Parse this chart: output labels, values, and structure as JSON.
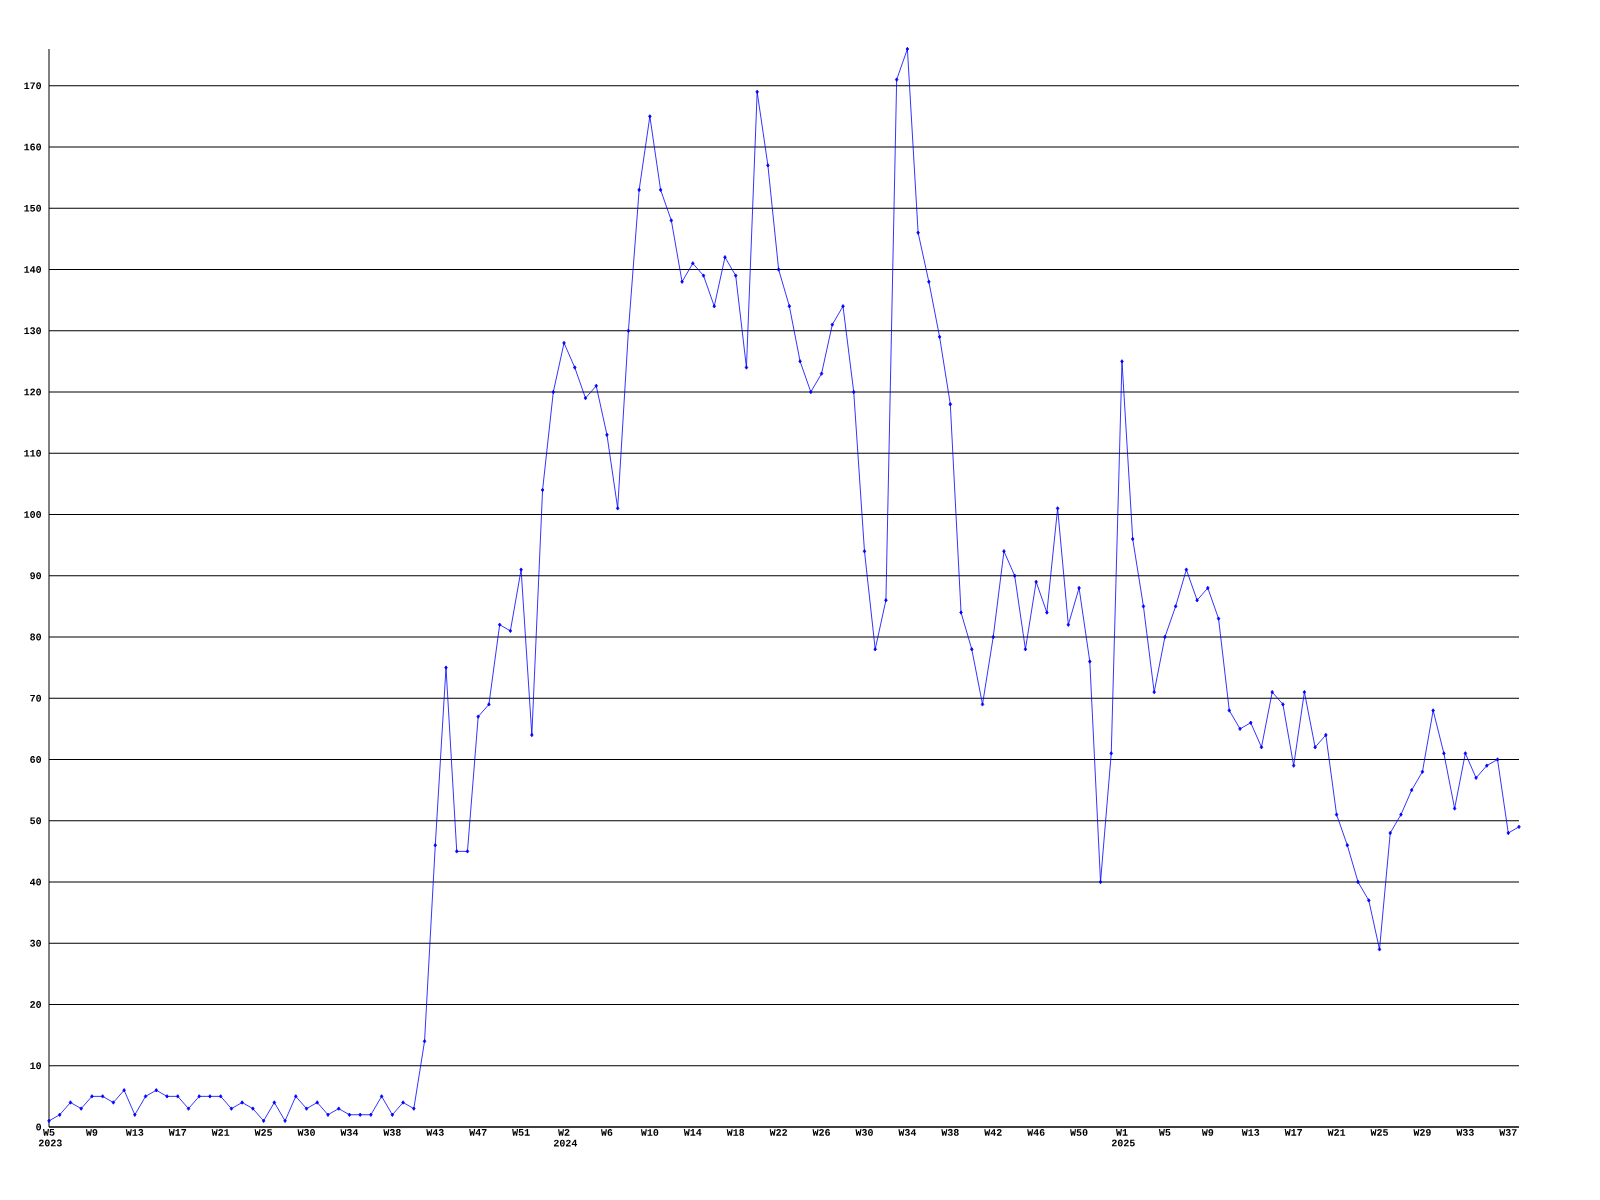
{
  "chart_data": {
    "type": "line",
    "categories": [
      "W5 2023",
      null,
      null,
      null,
      "W9",
      null,
      null,
      null,
      "W13",
      null,
      null,
      null,
      "W17",
      null,
      null,
      null,
      "W21",
      null,
      null,
      null,
      "W25",
      null,
      null,
      null,
      "W30",
      null,
      null,
      null,
      "W34",
      null,
      null,
      null,
      "W38",
      null,
      null,
      null,
      "W43",
      null,
      null,
      null,
      "W47",
      null,
      null,
      null,
      "W51",
      null,
      null,
      null,
      "W2 2024",
      null,
      null,
      null,
      "W6",
      null,
      null,
      null,
      "W10",
      null,
      null,
      null,
      "W14",
      null,
      null,
      null,
      "W18",
      null,
      null,
      null,
      "W22",
      null,
      null,
      null,
      "W26",
      null,
      null,
      null,
      "W30",
      null,
      null,
      null,
      "W34",
      null,
      null,
      null,
      "W38",
      null,
      null,
      null,
      "W42",
      null,
      null,
      null,
      "W46",
      null,
      null,
      null,
      "W50",
      null,
      null,
      null,
      "W1 2025",
      null,
      null,
      null,
      "W5",
      null,
      null,
      null,
      "W9",
      null,
      null,
      null,
      "W13",
      null,
      null,
      null,
      "W17",
      null,
      null,
      null,
      "W21",
      null,
      null,
      null,
      "W25",
      null,
      null,
      null,
      "W29",
      null,
      null,
      null,
      "W33",
      null,
      null,
      null,
      "W37",
      null
    ],
    "values": [
      1,
      2,
      4,
      3,
      5,
      5,
      4,
      6,
      2,
      5,
      6,
      5,
      5,
      3,
      5,
      5,
      5,
      3,
      4,
      3,
      1,
      4,
      1,
      5,
      3,
      4,
      2,
      3,
      2,
      2,
      2,
      5,
      2,
      4,
      3,
      14,
      46,
      75,
      45,
      45,
      67,
      69,
      82,
      81,
      91,
      64,
      104,
      120,
      128,
      124,
      119,
      121,
      113,
      101,
      130,
      153,
      165,
      153,
      148,
      138,
      141,
      139,
      134,
      142,
      139,
      124,
      169,
      157,
      140,
      134,
      125,
      120,
      123,
      131,
      134,
      120,
      94,
      78,
      86,
      171,
      176,
      146,
      138,
      129,
      118,
      84,
      78,
      69,
      80,
      94,
      90,
      78,
      89,
      84,
      101,
      82,
      88,
      76,
      40,
      61,
      125,
      96,
      85,
      71,
      80,
      85,
      91,
      86,
      88,
      83,
      68,
      65,
      66,
      62,
      71,
      69,
      59,
      71,
      62,
      64,
      51,
      46,
      40,
      37,
      29,
      48,
      51,
      55,
      58,
      68,
      61,
      52,
      61,
      57,
      59,
      60,
      48,
      49
    ],
    "color": "#0000ff",
    "ylim": [
      0,
      176
    ],
    "yticks": [
      0,
      10,
      20,
      30,
      40,
      50,
      60,
      70,
      80,
      90,
      100,
      110,
      120,
      130,
      140,
      150,
      160,
      170
    ],
    "grid": "y",
    "marker": "diamond",
    "line_style": "solid"
  }
}
